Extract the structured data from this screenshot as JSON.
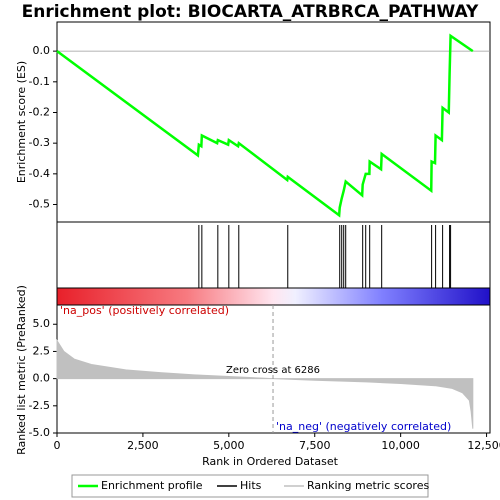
{
  "chart_data": [
    {
      "type": "line",
      "title": "Enrichment plot: BIOCARTA_ATRBRCA_PATHWAY",
      "ylabel": "Enrichment score (ES)",
      "xlim": [
        0,
        12600
      ],
      "ylim": [
        -0.557,
        0.095
      ],
      "yticks": [
        {
          "value": 0,
          "label": "0.0"
        },
        -0.1,
        -0.2,
        -0.3,
        -0.4,
        -0.5
      ],
      "series": [
        {
          "name": "Enrichment profile",
          "color": "#00ff00",
          "x": [
            0,
            4100,
            4128,
            4200,
            4215,
            4660,
            4680,
            4980,
            5000,
            5270,
            5290,
            6700,
            6715,
            8210,
            8227,
            8285,
            8343,
            8401,
            8880,
            8895,
            8983,
            9090,
            9099,
            9430,
            9448,
            10890,
            10901,
            11000,
            11017,
            11200,
            11221,
            11400,
            11424,
            11453,
            12100
          ],
          "values": [
            0,
            -0.34,
            -0.305,
            -0.31,
            -0.275,
            -0.3,
            -0.29,
            -0.305,
            -0.29,
            -0.31,
            -0.3,
            -0.42,
            -0.41,
            -0.535,
            -0.51,
            -0.48,
            -0.455,
            -0.425,
            -0.47,
            -0.435,
            -0.4,
            -0.4,
            -0.36,
            -0.385,
            -0.335,
            -0.455,
            -0.36,
            -0.365,
            -0.275,
            -0.29,
            -0.185,
            -0.2,
            -0.075,
            0.05,
            0.0
          ]
        }
      ]
    },
    {
      "type": "rug",
      "xlim": [
        0,
        12600
      ],
      "series": [
        {
          "name": "Hits",
          "color": "#000000",
          "x": [
            4128,
            4215,
            4680,
            5000,
            5290,
            6715,
            8227,
            8285,
            8343,
            8401,
            8895,
            8983,
            9099,
            9448,
            10901,
            11017,
            11221,
            11424,
            11453
          ]
        }
      ]
    },
    {
      "type": "area",
      "ylabel": "Ranked list metric (PreRanked)",
      "xlabel": "Rank in Ordered Dataset",
      "xlim": [
        0,
        12600
      ],
      "ylim": [
        -5,
        6.77
      ],
      "xticks": [
        0,
        {
          "value": 2500,
          "label": "2,500"
        },
        {
          "value": 5000,
          "label": "5,000"
        },
        {
          "value": 7500,
          "label": "7,500"
        },
        {
          "value": 10000,
          "label": "10,000"
        },
        {
          "value": 12500,
          "label": "12,500"
        }
      ],
      "yticks": [
        {
          "value": 5,
          "label": "5.0"
        },
        2.5,
        {
          "value": 0,
          "label": "0.0"
        },
        -2.5,
        {
          "value": -5,
          "label": "-5.0"
        }
      ],
      "zero_cross": 6286,
      "annotations": [
        "'na_pos' (positively correlated)",
        "Zero cross at 6286",
        "'na_neg' (negatively correlated)"
      ],
      "series": [
        {
          "name": "Ranking metric scores",
          "color": "#c0c0c0",
          "x": [
            0,
            200,
            500,
            1000,
            2000,
            3000,
            4000,
            5000,
            6286,
            7500,
            9000,
            10000,
            11000,
            11500,
            11800,
            12000,
            12050,
            12100
          ],
          "values": [
            3.5,
            2.5,
            1.8,
            1.3,
            0.8,
            0.55,
            0.35,
            0.2,
            0,
            -0.15,
            -0.3,
            -0.45,
            -0.65,
            -0.9,
            -1.3,
            -2.0,
            -3.0,
            -4.6
          ]
        }
      ]
    }
  ]
}
